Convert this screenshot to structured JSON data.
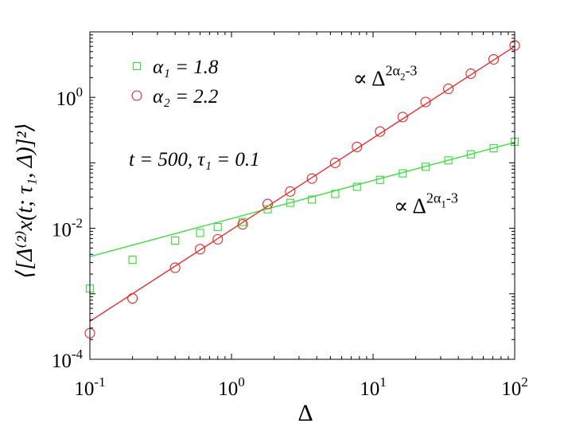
{
  "chart_data": {
    "type": "scatter",
    "title": "",
    "xlabel": "Δ",
    "ylabel": "⟨[Δ⁽²⁾x(t; τ₁, Δ)]²⟩",
    "xscale": "log",
    "yscale": "log",
    "xlim": [
      0.1,
      100
    ],
    "ylim": [
      0.0001,
      10
    ],
    "x_ticks": [
      {
        "value": 0.1,
        "base": "10",
        "exp": "-1"
      },
      {
        "value": 1,
        "base": "10",
        "exp": "0"
      },
      {
        "value": 10,
        "base": "10",
        "exp": "1"
      },
      {
        "value": 100,
        "base": "10",
        "exp": "2"
      }
    ],
    "y_ticks": [
      {
        "value": 0.0001,
        "base": "10",
        "exp": "-4"
      },
      {
        "value": 0.01,
        "base": "10",
        "exp": "-2"
      },
      {
        "value": 1,
        "base": "10",
        "exp": "0"
      }
    ],
    "grid": false,
    "legend_position": "top-left",
    "parameter_text": "t = 500, τ₁ = 0.1",
    "series": [
      {
        "name": "α₁ = 1.8",
        "color": "#33dd33",
        "marker": "square",
        "x": [
          0.1,
          0.2,
          0.4,
          0.6,
          0.8,
          1.2,
          1.8,
          2.6,
          3.7,
          5.4,
          7.7,
          11.2,
          16.2,
          23.5,
          34,
          49,
          71,
          100
        ],
        "y": [
          0.0012,
          0.0033,
          0.0065,
          0.0085,
          0.0105,
          0.0125,
          0.0195,
          0.0245,
          0.0275,
          0.0335,
          0.043,
          0.055,
          0.069,
          0.087,
          0.109,
          0.135,
          0.167,
          0.21
        ]
      },
      {
        "name": "α₂ = 2.2",
        "color": "#ee2222",
        "marker": "circle",
        "x": [
          0.1,
          0.2,
          0.4,
          0.6,
          0.8,
          1.2,
          1.8,
          2.6,
          3.7,
          5.4,
          7.7,
          11.2,
          16.2,
          23.5,
          34,
          49,
          71,
          100
        ],
        "y": [
          0.00025,
          0.00085,
          0.0025,
          0.0048,
          0.0068,
          0.0115,
          0.0235,
          0.0365,
          0.0575,
          0.1,
          0.175,
          0.3,
          0.5,
          0.85,
          1.35,
          2.3,
          3.8,
          6.2
        ]
      }
    ],
    "fit_lines": [
      {
        "color": "#33dd33",
        "x": [
          0.1,
          100
        ],
        "y": [
          0.0037,
          0.205
        ]
      },
      {
        "color": "#ee2222",
        "x": [
          0.1,
          100
        ],
        "y": [
          0.00038,
          6.0
        ]
      }
    ],
    "annotations": [
      {
        "prefix": "∝ Δ",
        "exp_before": "2α",
        "sub": "1",
        "exp_after": "-3",
        "x": 14,
        "y": 0.017
      },
      {
        "prefix": "∝ Δ",
        "exp_before": "2α",
        "sub": "2",
        "exp_after": "-3",
        "x": 7.2,
        "y": 1.5
      }
    ]
  }
}
